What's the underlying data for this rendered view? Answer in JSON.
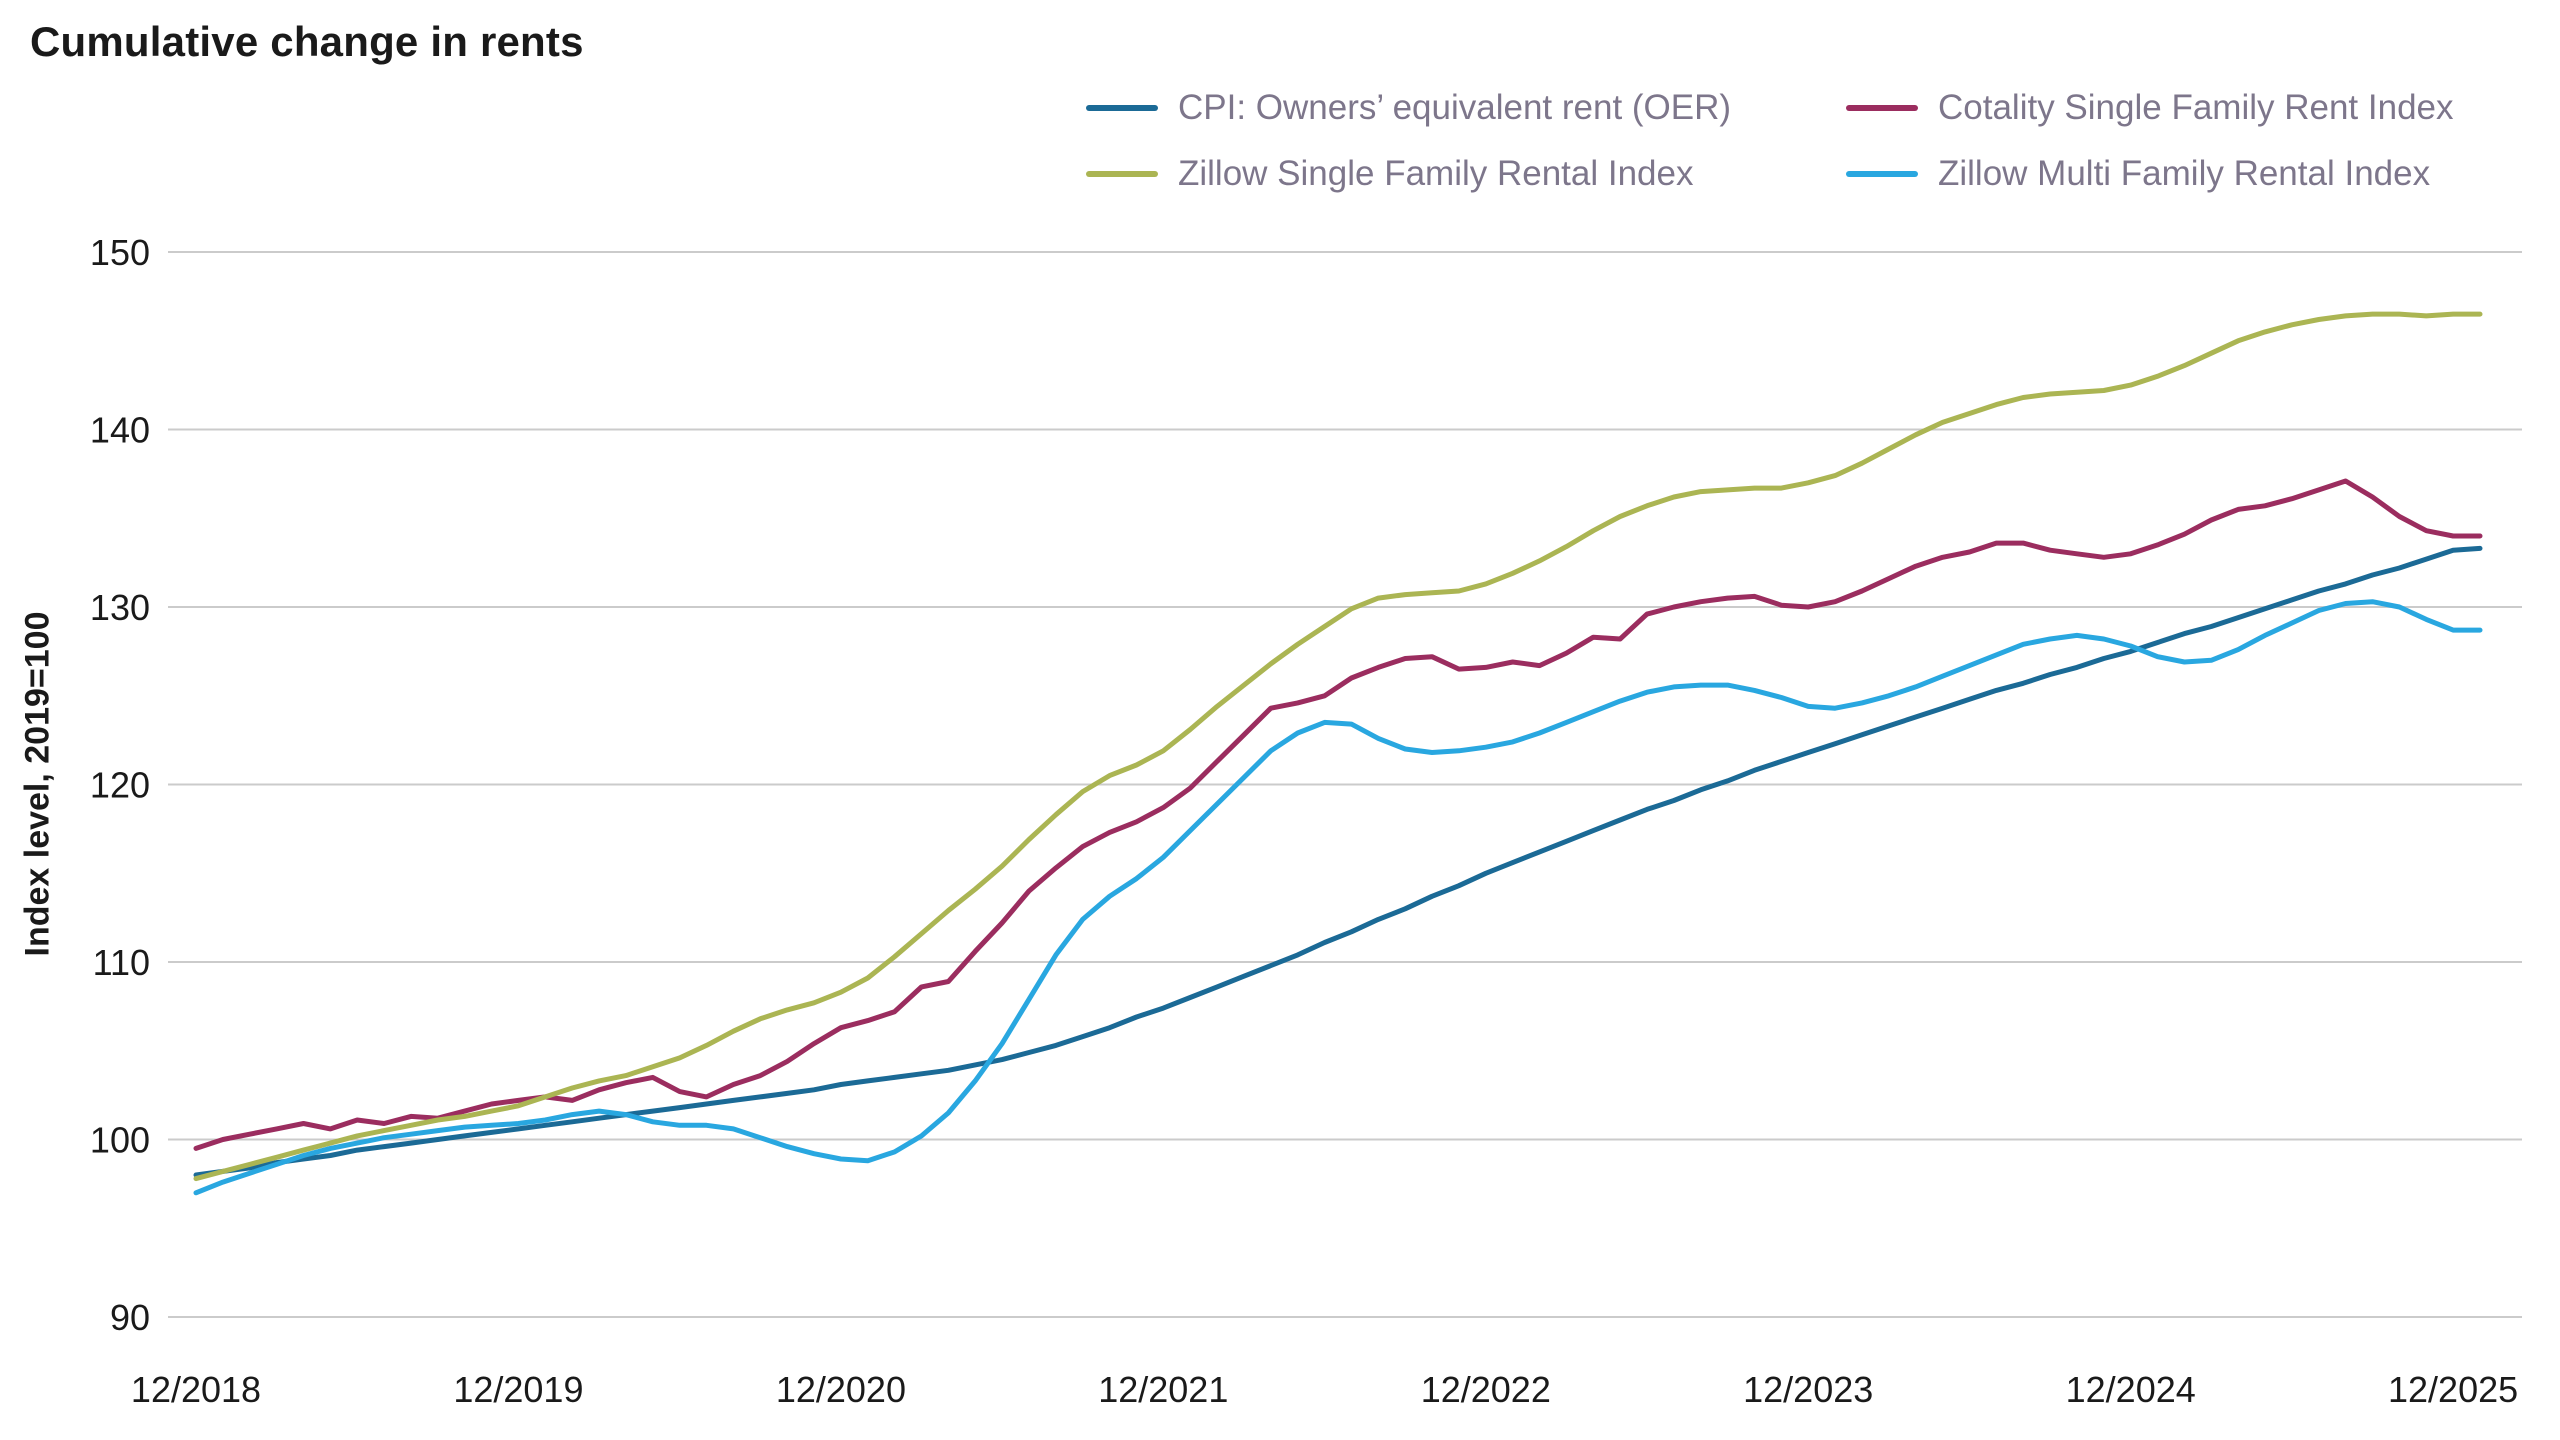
{
  "title": "Cumulative change in rents",
  "ylabel": "Index level, 2019=100",
  "chart_data": {
    "type": "line",
    "title": "Cumulative change in rents",
    "xlabel": "",
    "ylabel": "Index level, 2019=100",
    "grid": "horizontal",
    "legend_position": "top-right",
    "ylim": [
      90,
      150
    ],
    "y_ticks": [
      90,
      100,
      110,
      120,
      130,
      140,
      150
    ],
    "x_tick_labels": [
      "12/2018",
      "12/2019",
      "12/2020",
      "12/2021",
      "12/2022",
      "12/2023",
      "12/2024",
      "12/2025"
    ],
    "x_frequency": "monthly",
    "colors": {
      "grid": "#cbcbcb",
      "tick_text": "#1a1a1a",
      "legend_text": "#7d768b"
    },
    "series": [
      {
        "name": "CPI: Owners’ equivalent rent (OER)",
        "slug": "cpi-oer",
        "color": "#1b6a96",
        "values": [
          98.0,
          98.2,
          98.4,
          98.7,
          98.9,
          99.1,
          99.4,
          99.6,
          99.8,
          100.0,
          100.2,
          100.4,
          100.6,
          100.8,
          101.0,
          101.2,
          101.4,
          101.6,
          101.8,
          102.0,
          102.2,
          102.4,
          102.6,
          102.8,
          103.1,
          103.3,
          103.5,
          103.7,
          103.9,
          104.2,
          104.5,
          104.9,
          105.3,
          105.8,
          106.3,
          106.9,
          107.4,
          108.0,
          108.6,
          109.2,
          109.8,
          110.4,
          111.1,
          111.7,
          112.4,
          113.0,
          113.7,
          114.3,
          115.0,
          115.6,
          116.2,
          116.8,
          117.4,
          118.0,
          118.6,
          119.1,
          119.7,
          120.2,
          120.8,
          121.3,
          121.8,
          122.3,
          122.8,
          123.3,
          123.8,
          124.3,
          124.8,
          125.3,
          125.7,
          126.2,
          126.6,
          127.1,
          127.5,
          128.0,
          128.5,
          128.9,
          129.4,
          129.9,
          130.4,
          130.9,
          131.3,
          131.8,
          132.2,
          132.7,
          133.2,
          133.3
        ]
      },
      {
        "name": "Cotality Single Family Rent Index",
        "slug": "cotality-sfr",
        "color": "#9b2d5f",
        "values": [
          99.5,
          100.0,
          100.3,
          100.6,
          100.9,
          100.6,
          101.1,
          100.9,
          101.3,
          101.2,
          101.6,
          102.0,
          102.2,
          102.4,
          102.2,
          102.8,
          103.2,
          103.5,
          102.7,
          102.4,
          103.1,
          103.6,
          104.4,
          105.4,
          106.3,
          106.7,
          107.2,
          108.6,
          108.9,
          110.6,
          112.2,
          114.0,
          115.3,
          116.5,
          117.3,
          117.9,
          118.7,
          119.8,
          121.3,
          122.8,
          124.3,
          124.6,
          125.0,
          126.0,
          126.6,
          127.1,
          127.2,
          126.5,
          126.6,
          126.9,
          126.7,
          127.4,
          128.3,
          128.2,
          129.6,
          130.0,
          130.3,
          130.5,
          130.6,
          130.1,
          130.0,
          130.3,
          130.9,
          131.6,
          132.3,
          132.8,
          133.1,
          133.6,
          133.6,
          133.2,
          133.0,
          132.8,
          133.0,
          133.5,
          134.1,
          134.9,
          135.5,
          135.7,
          136.1,
          136.6,
          137.1,
          136.2,
          135.1,
          134.3,
          134.0,
          134.0
        ]
      },
      {
        "name": "Zillow Single Family Rental Index",
        "slug": "zillow-sfr",
        "color": "#abb553",
        "values": [
          97.8,
          98.2,
          98.6,
          99.0,
          99.4,
          99.8,
          100.2,
          100.5,
          100.8,
          101.1,
          101.3,
          101.6,
          101.9,
          102.4,
          102.9,
          103.3,
          103.6,
          104.1,
          104.6,
          105.3,
          106.1,
          106.8,
          107.3,
          107.7,
          108.3,
          109.1,
          110.3,
          111.6,
          112.9,
          114.1,
          115.4,
          116.9,
          118.3,
          119.6,
          120.5,
          121.1,
          121.9,
          123.1,
          124.4,
          125.6,
          126.8,
          127.9,
          128.9,
          129.9,
          130.5,
          130.7,
          130.8,
          130.9,
          131.3,
          131.9,
          132.6,
          133.4,
          134.3,
          135.1,
          135.7,
          136.2,
          136.5,
          136.6,
          136.7,
          136.7,
          137.0,
          137.4,
          138.1,
          138.9,
          139.7,
          140.4,
          140.9,
          141.4,
          141.8,
          142.0,
          142.1,
          142.2,
          142.5,
          143.0,
          143.6,
          144.3,
          145.0,
          145.5,
          145.9,
          146.2,
          146.4,
          146.5,
          146.5,
          146.4,
          146.5,
          146.5
        ]
      },
      {
        "name": "Zillow Multi Family Rental Index",
        "slug": "zillow-mfr",
        "color": "#29a7e0",
        "values": [
          97.0,
          97.6,
          98.1,
          98.6,
          99.1,
          99.5,
          99.8,
          100.1,
          100.3,
          100.5,
          100.7,
          100.8,
          100.9,
          101.1,
          101.4,
          101.6,
          101.4,
          101.0,
          100.8,
          100.8,
          100.6,
          100.1,
          99.6,
          99.2,
          98.9,
          98.8,
          99.3,
          100.2,
          101.5,
          103.3,
          105.4,
          107.9,
          110.4,
          112.4,
          113.7,
          114.7,
          115.9,
          117.4,
          118.9,
          120.4,
          121.9,
          122.9,
          123.5,
          123.4,
          122.6,
          122.0,
          121.8,
          121.9,
          122.1,
          122.4,
          122.9,
          123.5,
          124.1,
          124.7,
          125.2,
          125.5,
          125.6,
          125.6,
          125.3,
          124.9,
          124.4,
          124.3,
          124.6,
          125.0,
          125.5,
          126.1,
          126.7,
          127.3,
          127.9,
          128.2,
          128.4,
          128.2,
          127.8,
          127.2,
          126.9,
          127.0,
          127.6,
          128.4,
          129.1,
          129.8,
          130.2,
          130.3,
          130.0,
          129.3,
          128.7,
          128.7
        ]
      }
    ]
  }
}
